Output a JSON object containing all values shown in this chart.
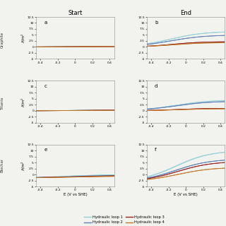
{
  "title_start": "Start",
  "title_end": "End",
  "subplot_labels": [
    "a",
    "b",
    "c",
    "d",
    "e",
    "f"
  ],
  "xlabel": "E (V vs SHE)",
  "ylim": [
    -5,
    12.5
  ],
  "yticks": [
    -5,
    -2.5,
    0,
    2.5,
    5,
    7.5,
    10,
    12.5
  ],
  "xticks": [
    -0.4,
    -0.2,
    0,
    0.2,
    0.4
  ],
  "xlim": [
    -0.45,
    0.45
  ],
  "legend_entries": [
    "Hydraulic loop 1",
    "Hydraulic loop 2",
    "Hydraulic loop 3",
    "Hydraulic loop 4"
  ],
  "colors": {
    "hl1": "#90D0D8",
    "hl2": "#6080B8",
    "hl3": "#982020",
    "hl4": "#C07828"
  },
  "bg": "#F2F2EE",
  "row_labels": [
    "Graphite",
    "Titania",
    "Biochar"
  ]
}
